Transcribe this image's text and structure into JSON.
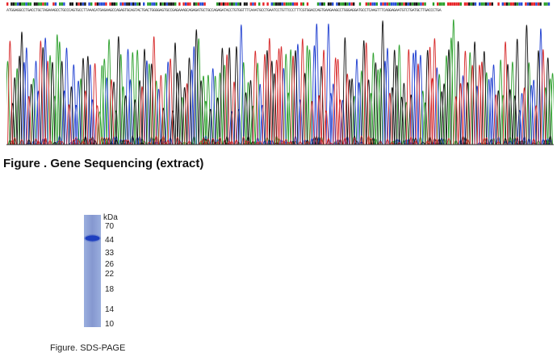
{
  "sequencing": {
    "sequence": "ATGGAGGCCTGACCTGCTAGAAAGCCTGCCCAGTGCCTTAAACATGAGAAGCCAGAGTGCAGTACTGACTGGGGAGTGCCGAGAAAGCAGAGATGCTGCCAGAGATACCTGTGGTTTCAAATGCCTGAATCCTGTTCCCTTTCGTGGACCAGTGAAGAAGCCTGGGAGGATGCCTCAAGTTTCAGGAGAATGTCTGATGCTTGACCCTGA",
    "caption": "Figure . Gene Sequencing (extract)",
    "trace_colors": {
      "A": "#2ca02c",
      "C": "#1f3fd0",
      "G": "#111111",
      "T": "#d62728"
    },
    "quality_colors": [
      "#e8262a",
      "#1a1a1a",
      "#2a4fd8",
      "#2aa02a",
      "#ffffff"
    ]
  },
  "sds_page": {
    "unit_label": "kDa",
    "markers": [
      "70",
      "44",
      "33",
      "26",
      "22",
      "18",
      "14",
      "10"
    ],
    "caption": "Figure. SDS-PAGE",
    "lane_color": "#8fa3d6",
    "band_color": "#1e3fbf"
  }
}
